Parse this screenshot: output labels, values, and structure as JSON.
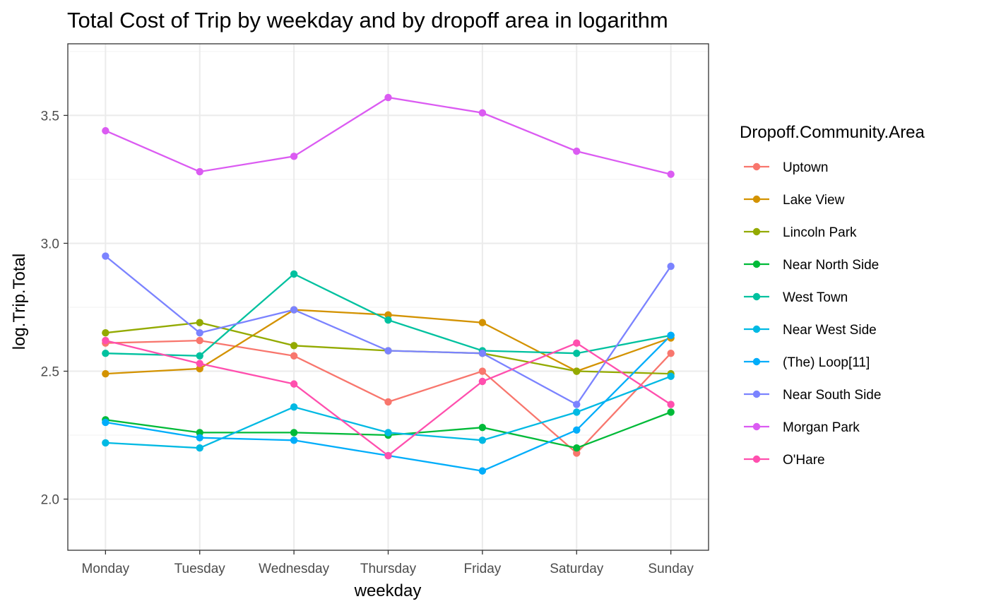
{
  "chart_data": {
    "type": "line",
    "title": "Total Cost of Trip by weekday and by dropoff area in logarithm",
    "xlabel": "weekday",
    "ylabel": "log.Trip.Total",
    "categories": [
      "Monday",
      "Tuesday",
      "Wednesday",
      "Thursday",
      "Friday",
      "Saturday",
      "Sunday"
    ],
    "ylim": [
      1.8,
      3.78
    ],
    "y_ticks": [
      "2.0",
      "2.5",
      "3.0",
      "3.5"
    ],
    "grid": true,
    "legend": {
      "title": "Dropoff.Community.Area",
      "position": "right"
    },
    "series": [
      {
        "name": "Uptown",
        "color": "#F8766D",
        "values": [
          2.61,
          2.62,
          2.56,
          2.38,
          2.5,
          2.18,
          2.57
        ]
      },
      {
        "name": "Lake View",
        "color": "#D39200",
        "values": [
          2.49,
          2.51,
          2.74,
          2.72,
          2.69,
          2.5,
          2.63
        ]
      },
      {
        "name": "Lincoln Park",
        "color": "#93AA00",
        "values": [
          2.65,
          2.69,
          2.6,
          2.58,
          2.57,
          2.5,
          2.49
        ]
      },
      {
        "name": "Near North Side",
        "color": "#00BA38",
        "values": [
          2.31,
          2.26,
          2.26,
          2.25,
          2.28,
          2.2,
          2.34
        ]
      },
      {
        "name": "West Town",
        "color": "#00C19F",
        "values": [
          2.57,
          2.56,
          2.88,
          2.7,
          2.58,
          2.57,
          2.64
        ]
      },
      {
        "name": "Near West Side",
        "color": "#00B9E3",
        "values": [
          2.22,
          2.2,
          2.36,
          2.26,
          2.23,
          2.34,
          2.48
        ]
      },
      {
        "name": "(The)  Loop[11]",
        "color": "#00ADFA",
        "values": [
          2.3,
          2.24,
          2.23,
          2.17,
          2.11,
          2.27,
          2.64
        ]
      },
      {
        "name": "Near South Side",
        "color": "#7B83FF",
        "values": [
          2.95,
          2.65,
          2.74,
          2.58,
          2.57,
          2.37,
          2.91
        ]
      },
      {
        "name": "Morgan Park",
        "color": "#DB5BF2",
        "values": [
          3.44,
          3.28,
          3.34,
          3.57,
          3.51,
          3.36,
          3.27
        ]
      },
      {
        "name": "O'Hare",
        "color": "#FF4FAE",
        "values": [
          2.62,
          2.53,
          2.45,
          2.17,
          2.46,
          2.61,
          2.37
        ]
      }
    ]
  }
}
